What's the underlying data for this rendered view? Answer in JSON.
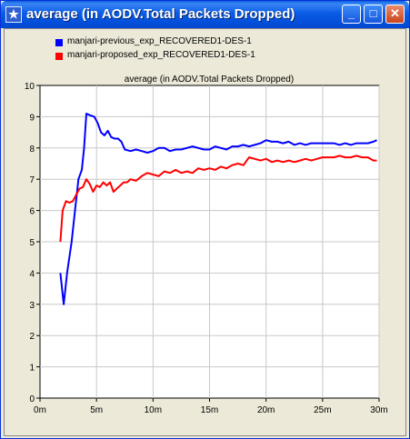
{
  "window": {
    "title": "average (in AODV.Total Packets Dropped)",
    "icon": "star-icon",
    "minimize_glyph": "_",
    "maximize_glyph": "□",
    "close_glyph": "✕"
  },
  "legend": [
    {
      "label": "manjari-previous_exp_RECOVERED1-DES-1",
      "color": "#0000ff"
    },
    {
      "label": "manjari-proposed_exp_RECOVERED1-DES-1",
      "color": "#ff0000"
    }
  ],
  "chart_data": {
    "type": "line",
    "title": "average (in AODV.Total Packets Dropped)",
    "xlabel": "",
    "ylabel": "",
    "xlim": [
      0,
      30
    ],
    "ylim": [
      0,
      10
    ],
    "x_ticks": [
      0,
      5,
      10,
      15,
      20,
      25,
      30
    ],
    "x_tick_labels": [
      "0m",
      "5m",
      "10m",
      "15m",
      "20m",
      "25m",
      "30m"
    ],
    "y_ticks": [
      0,
      1,
      2,
      3,
      4,
      5,
      6,
      7,
      8,
      9,
      10
    ],
    "y_tick_labels": [
      "0",
      "1",
      "2",
      "3",
      "4",
      "5",
      "6",
      "7",
      "8",
      "9",
      "10"
    ],
    "grid": true,
    "legend_position": "top-left",
    "series": [
      {
        "name": "manjari-previous_exp_RECOVERED1-DES-1",
        "color": "#0000ff",
        "points": [
          [
            1.8,
            4.0
          ],
          [
            2.1,
            3.0
          ],
          [
            2.4,
            4.0
          ],
          [
            2.8,
            5.0
          ],
          [
            3.1,
            6.0
          ],
          [
            3.4,
            7.0
          ],
          [
            3.7,
            7.3
          ],
          [
            3.9,
            8.0
          ],
          [
            4.1,
            9.1
          ],
          [
            4.4,
            9.05
          ],
          [
            4.8,
            9.0
          ],
          [
            5.1,
            8.8
          ],
          [
            5.4,
            8.5
          ],
          [
            5.7,
            8.4
          ],
          [
            6.0,
            8.55
          ],
          [
            6.3,
            8.35
          ],
          [
            6.6,
            8.3
          ],
          [
            6.9,
            8.3
          ],
          [
            7.2,
            8.2
          ],
          [
            7.5,
            7.95
          ],
          [
            8.0,
            7.9
          ],
          [
            8.5,
            7.95
          ],
          [
            9.0,
            7.9
          ],
          [
            9.5,
            7.85
          ],
          [
            10.0,
            7.9
          ],
          [
            10.5,
            8.0
          ],
          [
            11.0,
            8.0
          ],
          [
            11.5,
            7.9
          ],
          [
            12.0,
            7.95
          ],
          [
            12.5,
            7.95
          ],
          [
            13.0,
            8.0
          ],
          [
            13.5,
            8.05
          ],
          [
            14.0,
            8.0
          ],
          [
            14.5,
            7.95
          ],
          [
            15.0,
            7.95
          ],
          [
            15.5,
            8.05
          ],
          [
            16.0,
            8.0
          ],
          [
            16.5,
            7.95
          ],
          [
            17.0,
            8.05
          ],
          [
            17.5,
            8.05
          ],
          [
            18.0,
            8.1
          ],
          [
            18.5,
            8.05
          ],
          [
            19.0,
            8.1
          ],
          [
            19.5,
            8.15
          ],
          [
            20.0,
            8.25
          ],
          [
            20.5,
            8.2
          ],
          [
            21.0,
            8.2
          ],
          [
            21.5,
            8.15
          ],
          [
            22.0,
            8.2
          ],
          [
            22.5,
            8.1
          ],
          [
            23.0,
            8.15
          ],
          [
            23.5,
            8.1
          ],
          [
            24.0,
            8.15
          ],
          [
            24.5,
            8.15
          ],
          [
            25.0,
            8.15
          ],
          [
            25.5,
            8.15
          ],
          [
            26.0,
            8.15
          ],
          [
            26.5,
            8.1
          ],
          [
            27.0,
            8.15
          ],
          [
            27.5,
            8.1
          ],
          [
            28.0,
            8.15
          ],
          [
            28.5,
            8.15
          ],
          [
            29.0,
            8.15
          ],
          [
            29.5,
            8.2
          ],
          [
            29.8,
            8.25
          ]
        ]
      },
      {
        "name": "manjari-proposed_exp_RECOVERED1-DES-1",
        "color": "#ff0000",
        "points": [
          [
            1.8,
            5.0
          ],
          [
            2.0,
            6.0
          ],
          [
            2.3,
            6.3
          ],
          [
            2.6,
            6.25
          ],
          [
            2.9,
            6.3
          ],
          [
            3.2,
            6.5
          ],
          [
            3.5,
            6.7
          ],
          [
            3.8,
            6.75
          ],
          [
            4.1,
            7.0
          ],
          [
            4.4,
            6.85
          ],
          [
            4.7,
            6.6
          ],
          [
            5.0,
            6.8
          ],
          [
            5.3,
            6.75
          ],
          [
            5.6,
            6.9
          ],
          [
            5.9,
            6.8
          ],
          [
            6.2,
            6.9
          ],
          [
            6.5,
            6.6
          ],
          [
            6.8,
            6.7
          ],
          [
            7.1,
            6.8
          ],
          [
            7.4,
            6.9
          ],
          [
            7.7,
            6.9
          ],
          [
            8.0,
            7.0
          ],
          [
            8.5,
            6.95
          ],
          [
            9.0,
            7.1
          ],
          [
            9.5,
            7.2
          ],
          [
            10.0,
            7.15
          ],
          [
            10.5,
            7.1
          ],
          [
            11.0,
            7.25
          ],
          [
            11.5,
            7.2
          ],
          [
            12.0,
            7.3
          ],
          [
            12.5,
            7.2
          ],
          [
            13.0,
            7.25
          ],
          [
            13.5,
            7.2
          ],
          [
            14.0,
            7.35
          ],
          [
            14.5,
            7.3
          ],
          [
            15.0,
            7.35
          ],
          [
            15.5,
            7.3
          ],
          [
            16.0,
            7.4
          ],
          [
            16.5,
            7.35
          ],
          [
            17.0,
            7.45
          ],
          [
            17.5,
            7.5
          ],
          [
            18.0,
            7.45
          ],
          [
            18.5,
            7.7
          ],
          [
            19.0,
            7.65
          ],
          [
            19.5,
            7.6
          ],
          [
            20.0,
            7.65
          ],
          [
            20.5,
            7.55
          ],
          [
            21.0,
            7.6
          ],
          [
            21.5,
            7.55
          ],
          [
            22.0,
            7.6
          ],
          [
            22.5,
            7.55
          ],
          [
            23.0,
            7.6
          ],
          [
            23.5,
            7.65
          ],
          [
            24.0,
            7.6
          ],
          [
            24.5,
            7.65
          ],
          [
            25.0,
            7.7
          ],
          [
            25.5,
            7.7
          ],
          [
            26.0,
            7.7
          ],
          [
            26.5,
            7.75
          ],
          [
            27.0,
            7.7
          ],
          [
            27.5,
            7.7
          ],
          [
            28.0,
            7.75
          ],
          [
            28.5,
            7.7
          ],
          [
            29.0,
            7.7
          ],
          [
            29.5,
            7.6
          ],
          [
            29.8,
            7.6
          ]
        ]
      }
    ]
  }
}
